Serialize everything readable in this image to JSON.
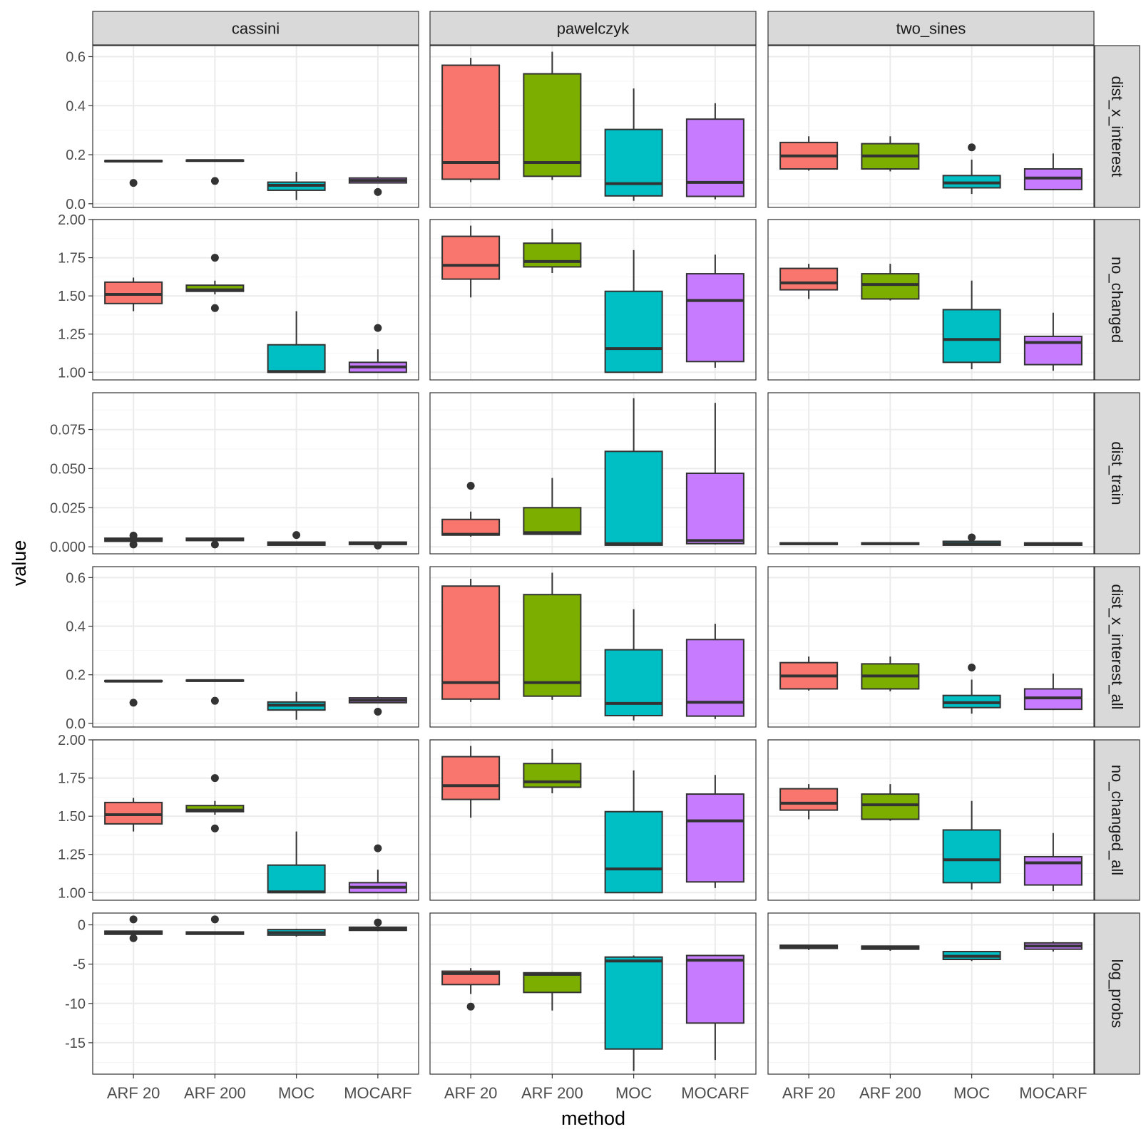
{
  "chart_data": {
    "type": "boxplot",
    "xlabel": "method",
    "ylabel": "value",
    "columns": [
      "cassini",
      "pawelczyk",
      "two_sines"
    ],
    "rows": [
      {
        "label": "dist_x_interest",
        "ylim": [
          -0.015,
          0.645
        ],
        "ticks": [
          0.0,
          0.2,
          0.4,
          0.6
        ],
        "tick_labels": [
          "0.0",
          "0.2",
          "0.4",
          "0.6"
        ],
        "minor_ticks": [
          0.1,
          0.3,
          0.5
        ]
      },
      {
        "label": "no_changed",
        "ylim": [
          0.95,
          2.0
        ],
        "ticks": [
          1.0,
          1.25,
          1.5,
          1.75,
          2.0
        ],
        "tick_labels": [
          "1.00",
          "1.25",
          "1.50",
          "1.75",
          "2.00"
        ],
        "minor_ticks": [
          1.125,
          1.375,
          1.625,
          1.875
        ]
      },
      {
        "label": "dist_train",
        "ylim": [
          -0.0045,
          0.0985
        ],
        "ticks": [
          0.0,
          0.025,
          0.05,
          0.075
        ],
        "tick_labels": [
          "0.000",
          "0.025",
          "0.050",
          "0.075"
        ],
        "minor_ticks": [
          0.0125,
          0.0375,
          0.0625,
          0.0875
        ]
      },
      {
        "label": "dist_x_interest_all",
        "ylim": [
          -0.015,
          0.645
        ],
        "ticks": [
          0.0,
          0.2,
          0.4,
          0.6
        ],
        "tick_labels": [
          "0.0",
          "0.2",
          "0.4",
          "0.6"
        ],
        "minor_ticks": [
          0.1,
          0.3,
          0.5
        ]
      },
      {
        "label": "no_changed_all",
        "ylim": [
          0.95,
          2.0
        ],
        "ticks": [
          1.0,
          1.25,
          1.5,
          1.75,
          2.0
        ],
        "tick_labels": [
          "1.00",
          "1.25",
          "1.50",
          "1.75",
          "2.00"
        ],
        "minor_ticks": [
          1.125,
          1.375,
          1.625,
          1.875
        ]
      },
      {
        "label": "log_probs",
        "ylim": [
          -19.0,
          1.5
        ],
        "ticks": [
          0,
          -5,
          -10,
          -15
        ],
        "tick_labels": [
          "0",
          "-5",
          "-10",
          "-15"
        ],
        "minor_ticks": [
          -2.5,
          -7.5,
          -12.5,
          -17.5
        ]
      }
    ],
    "categories": [
      "ARF 20",
      "ARF 200",
      "MOC",
      "MOCARF"
    ],
    "colors": {
      "ARF 20": "#F8766D",
      "ARF 200": "#7CAE00",
      "MOC": "#00BFC4",
      "MOCARF": "#C77CFF"
    },
    "grid": true,
    "boxes": [
      [
        [
          {
            "min": 0.172,
            "q1": 0.172,
            "median": 0.174,
            "q3": 0.176,
            "max": 0.176,
            "outliers": [
              0.085
            ]
          },
          {
            "min": 0.174,
            "q1": 0.174,
            "median": 0.176,
            "q3": 0.178,
            "max": 0.178,
            "outliers": [
              0.093
            ]
          },
          {
            "min": 0.015,
            "q1": 0.055,
            "median": 0.075,
            "q3": 0.088,
            "max": 0.13,
            "outliers": []
          },
          {
            "min": 0.085,
            "q1": 0.085,
            "median": 0.095,
            "q3": 0.105,
            "max": 0.112,
            "outliers": [
              0.048
            ]
          }
        ],
        [
          {
            "min": 0.088,
            "q1": 0.1,
            "median": 0.168,
            "q3": 0.565,
            "max": 0.595,
            "outliers": []
          },
          {
            "min": 0.097,
            "q1": 0.112,
            "median": 0.168,
            "q3": 0.53,
            "max": 0.62,
            "outliers": []
          },
          {
            "min": 0.012,
            "q1": 0.032,
            "median": 0.082,
            "q3": 0.303,
            "max": 0.47,
            "outliers": []
          },
          {
            "min": 0.018,
            "q1": 0.03,
            "median": 0.087,
            "q3": 0.345,
            "max": 0.41,
            "outliers": []
          }
        ],
        [
          {
            "min": 0.135,
            "q1": 0.142,
            "median": 0.195,
            "q3": 0.25,
            "max": 0.275,
            "outliers": []
          },
          {
            "min": 0.132,
            "q1": 0.142,
            "median": 0.195,
            "q3": 0.245,
            "max": 0.275,
            "outliers": []
          },
          {
            "min": 0.04,
            "q1": 0.065,
            "median": 0.085,
            "q3": 0.115,
            "max": 0.18,
            "outliers": [
              0.23
            ]
          },
          {
            "min": 0.055,
            "q1": 0.058,
            "median": 0.105,
            "q3": 0.142,
            "max": 0.205,
            "outliers": []
          }
        ]
      ],
      [
        [
          {
            "min": 1.4,
            "q1": 1.45,
            "median": 1.51,
            "q3": 1.59,
            "max": 1.62,
            "outliers": []
          },
          {
            "min": 1.51,
            "q1": 1.53,
            "median": 1.54,
            "q3": 1.57,
            "max": 1.6,
            "outliers": [
              1.75,
              1.42
            ]
          },
          {
            "min": 1.0,
            "q1": 1.0,
            "median": 1.005,
            "q3": 1.18,
            "max": 1.4,
            "outliers": []
          },
          {
            "min": 1.0,
            "q1": 1.0,
            "median": 1.035,
            "q3": 1.065,
            "max": 1.15,
            "outliers": [
              1.29
            ]
          }
        ],
        [
          {
            "min": 1.49,
            "q1": 1.61,
            "median": 1.7,
            "q3": 1.89,
            "max": 1.96,
            "outliers": []
          },
          {
            "min": 1.65,
            "q1": 1.69,
            "median": 1.725,
            "q3": 1.845,
            "max": 1.94,
            "outliers": []
          },
          {
            "min": 1.0,
            "q1": 1.0,
            "median": 1.155,
            "q3": 1.53,
            "max": 1.8,
            "outliers": []
          },
          {
            "min": 1.03,
            "q1": 1.07,
            "median": 1.47,
            "q3": 1.645,
            "max": 1.77,
            "outliers": []
          }
        ],
        [
          {
            "min": 1.48,
            "q1": 1.54,
            "median": 1.585,
            "q3": 1.68,
            "max": 1.71,
            "outliers": []
          },
          {
            "min": 1.47,
            "q1": 1.48,
            "median": 1.575,
            "q3": 1.645,
            "max": 1.71,
            "outliers": []
          },
          {
            "min": 1.02,
            "q1": 1.065,
            "median": 1.215,
            "q3": 1.41,
            "max": 1.6,
            "outliers": []
          },
          {
            "min": 1.01,
            "q1": 1.05,
            "median": 1.195,
            "q3": 1.235,
            "max": 1.39,
            "outliers": []
          }
        ]
      ],
      [
        [
          {
            "min": 0.0035,
            "q1": 0.0035,
            "median": 0.0045,
            "q3": 0.0055,
            "max": 0.0055,
            "outliers": [
              0.0072,
              0.0015
            ]
          },
          {
            "min": 0.004,
            "q1": 0.004,
            "median": 0.0045,
            "q3": 0.0055,
            "max": 0.0055,
            "outliers": [
              0.0015
            ]
          },
          {
            "min": 0.001,
            "q1": 0.001,
            "median": 0.002,
            "q3": 0.003,
            "max": 0.003,
            "outliers": [
              0.0075
            ]
          },
          {
            "min": 0.0015,
            "q1": 0.0015,
            "median": 0.002,
            "q3": 0.003,
            "max": 0.003,
            "outliers": [
              0.0008
            ]
          }
        ],
        [
          {
            "min": 0.0065,
            "q1": 0.0075,
            "median": 0.008,
            "q3": 0.0175,
            "max": 0.0225,
            "outliers": [
              0.039
            ]
          },
          {
            "min": 0.008,
            "q1": 0.008,
            "median": 0.009,
            "q3": 0.025,
            "max": 0.044,
            "outliers": []
          },
          {
            "min": 0.0005,
            "q1": 0.001,
            "median": 0.002,
            "q3": 0.061,
            "max": 0.095,
            "outliers": []
          },
          {
            "min": 0.0015,
            "q1": 0.002,
            "median": 0.004,
            "q3": 0.047,
            "max": 0.092,
            "outliers": []
          }
        ],
        [
          {
            "min": 0.0015,
            "q1": 0.0015,
            "median": 0.002,
            "q3": 0.0025,
            "max": 0.0025,
            "outliers": []
          },
          {
            "min": 0.0015,
            "q1": 0.0015,
            "median": 0.002,
            "q3": 0.0025,
            "max": 0.0025,
            "outliers": []
          },
          {
            "min": 0.0008,
            "q1": 0.001,
            "median": 0.002,
            "q3": 0.0035,
            "max": 0.0035,
            "outliers": [
              0.006
            ]
          },
          {
            "min": 0.0008,
            "q1": 0.001,
            "median": 0.0018,
            "q3": 0.0025,
            "max": 0.0025,
            "outliers": []
          }
        ]
      ],
      [
        [
          {
            "min": 0.172,
            "q1": 0.172,
            "median": 0.174,
            "q3": 0.176,
            "max": 0.176,
            "outliers": [
              0.085
            ]
          },
          {
            "min": 0.174,
            "q1": 0.174,
            "median": 0.176,
            "q3": 0.178,
            "max": 0.178,
            "outliers": [
              0.093
            ]
          },
          {
            "min": 0.015,
            "q1": 0.055,
            "median": 0.075,
            "q3": 0.088,
            "max": 0.13,
            "outliers": []
          },
          {
            "min": 0.085,
            "q1": 0.085,
            "median": 0.095,
            "q3": 0.105,
            "max": 0.112,
            "outliers": [
              0.048
            ]
          }
        ],
        [
          {
            "min": 0.088,
            "q1": 0.1,
            "median": 0.168,
            "q3": 0.565,
            "max": 0.595,
            "outliers": []
          },
          {
            "min": 0.097,
            "q1": 0.112,
            "median": 0.168,
            "q3": 0.53,
            "max": 0.62,
            "outliers": []
          },
          {
            "min": 0.012,
            "q1": 0.032,
            "median": 0.082,
            "q3": 0.303,
            "max": 0.47,
            "outliers": []
          },
          {
            "min": 0.018,
            "q1": 0.03,
            "median": 0.087,
            "q3": 0.345,
            "max": 0.41,
            "outliers": []
          }
        ],
        [
          {
            "min": 0.135,
            "q1": 0.142,
            "median": 0.195,
            "q3": 0.25,
            "max": 0.275,
            "outliers": []
          },
          {
            "min": 0.132,
            "q1": 0.142,
            "median": 0.195,
            "q3": 0.245,
            "max": 0.275,
            "outliers": []
          },
          {
            "min": 0.04,
            "q1": 0.065,
            "median": 0.085,
            "q3": 0.115,
            "max": 0.18,
            "outliers": [
              0.23
            ]
          },
          {
            "min": 0.055,
            "q1": 0.058,
            "median": 0.105,
            "q3": 0.142,
            "max": 0.205,
            "outliers": []
          }
        ]
      ],
      [
        [
          {
            "min": 1.4,
            "q1": 1.45,
            "median": 1.51,
            "q3": 1.59,
            "max": 1.62,
            "outliers": []
          },
          {
            "min": 1.51,
            "q1": 1.53,
            "median": 1.54,
            "q3": 1.57,
            "max": 1.6,
            "outliers": [
              1.75,
              1.42
            ]
          },
          {
            "min": 1.0,
            "q1": 1.0,
            "median": 1.005,
            "q3": 1.18,
            "max": 1.4,
            "outliers": []
          },
          {
            "min": 1.0,
            "q1": 1.0,
            "median": 1.035,
            "q3": 1.065,
            "max": 1.15,
            "outliers": [
              1.29
            ]
          }
        ],
        [
          {
            "min": 1.49,
            "q1": 1.61,
            "median": 1.7,
            "q3": 1.89,
            "max": 1.96,
            "outliers": []
          },
          {
            "min": 1.65,
            "q1": 1.69,
            "median": 1.725,
            "q3": 1.845,
            "max": 1.94,
            "outliers": []
          },
          {
            "min": 1.0,
            "q1": 1.0,
            "median": 1.155,
            "q3": 1.53,
            "max": 1.8,
            "outliers": []
          },
          {
            "min": 1.03,
            "q1": 1.07,
            "median": 1.47,
            "q3": 1.645,
            "max": 1.77,
            "outliers": []
          }
        ],
        [
          {
            "min": 1.48,
            "q1": 1.54,
            "median": 1.585,
            "q3": 1.68,
            "max": 1.71,
            "outliers": []
          },
          {
            "min": 1.47,
            "q1": 1.48,
            "median": 1.575,
            "q3": 1.645,
            "max": 1.71,
            "outliers": []
          },
          {
            "min": 1.02,
            "q1": 1.065,
            "median": 1.215,
            "q3": 1.41,
            "max": 1.6,
            "outliers": []
          },
          {
            "min": 1.01,
            "q1": 1.05,
            "median": 1.195,
            "q3": 1.235,
            "max": 1.39,
            "outliers": []
          }
        ]
      ],
      [
        [
          {
            "min": -1.2,
            "q1": -1.2,
            "median": -1.0,
            "q3": -0.8,
            "max": -0.8,
            "outliers": [
              0.7,
              -1.7
            ]
          },
          {
            "min": -1.2,
            "q1": -1.2,
            "median": -1.0,
            "q3": -0.9,
            "max": -0.9,
            "outliers": [
              0.7
            ]
          },
          {
            "min": -1.5,
            "q1": -1.3,
            "median": -1.0,
            "q3": -0.6,
            "max": -0.5,
            "outliers": []
          },
          {
            "min": -0.8,
            "q1": -0.7,
            "median": -0.5,
            "q3": -0.3,
            "max": -0.2,
            "outliers": [
              0.3
            ]
          }
        ],
        [
          {
            "min": -8.8,
            "q1": -7.6,
            "median": -6.2,
            "q3": -5.9,
            "max": -5.5,
            "outliers": [
              -10.4
            ]
          },
          {
            "min": -10.9,
            "q1": -8.6,
            "median": -6.3,
            "q3": -6.1,
            "max": -6.0,
            "outliers": []
          },
          {
            "min": -18.6,
            "q1": -15.8,
            "median": -4.6,
            "q3": -4.1,
            "max": -3.9,
            "outliers": []
          },
          {
            "min": -17.2,
            "q1": -12.5,
            "median": -4.5,
            "q3": -3.9,
            "max": -3.9,
            "outliers": []
          }
        ],
        [
          {
            "min": -3.2,
            "q1": -3.0,
            "median": -2.8,
            "q3": -2.6,
            "max": -2.6,
            "outliers": []
          },
          {
            "min": -3.3,
            "q1": -3.1,
            "median": -2.9,
            "q3": -2.7,
            "max": -2.7,
            "outliers": []
          },
          {
            "min": -4.6,
            "q1": -4.4,
            "median": -4.0,
            "q3": -3.4,
            "max": -3.4,
            "outliers": []
          },
          {
            "min": -3.4,
            "q1": -3.1,
            "median": -2.7,
            "q3": -2.3,
            "max": -2.1,
            "outliers": []
          }
        ]
      ]
    ]
  }
}
